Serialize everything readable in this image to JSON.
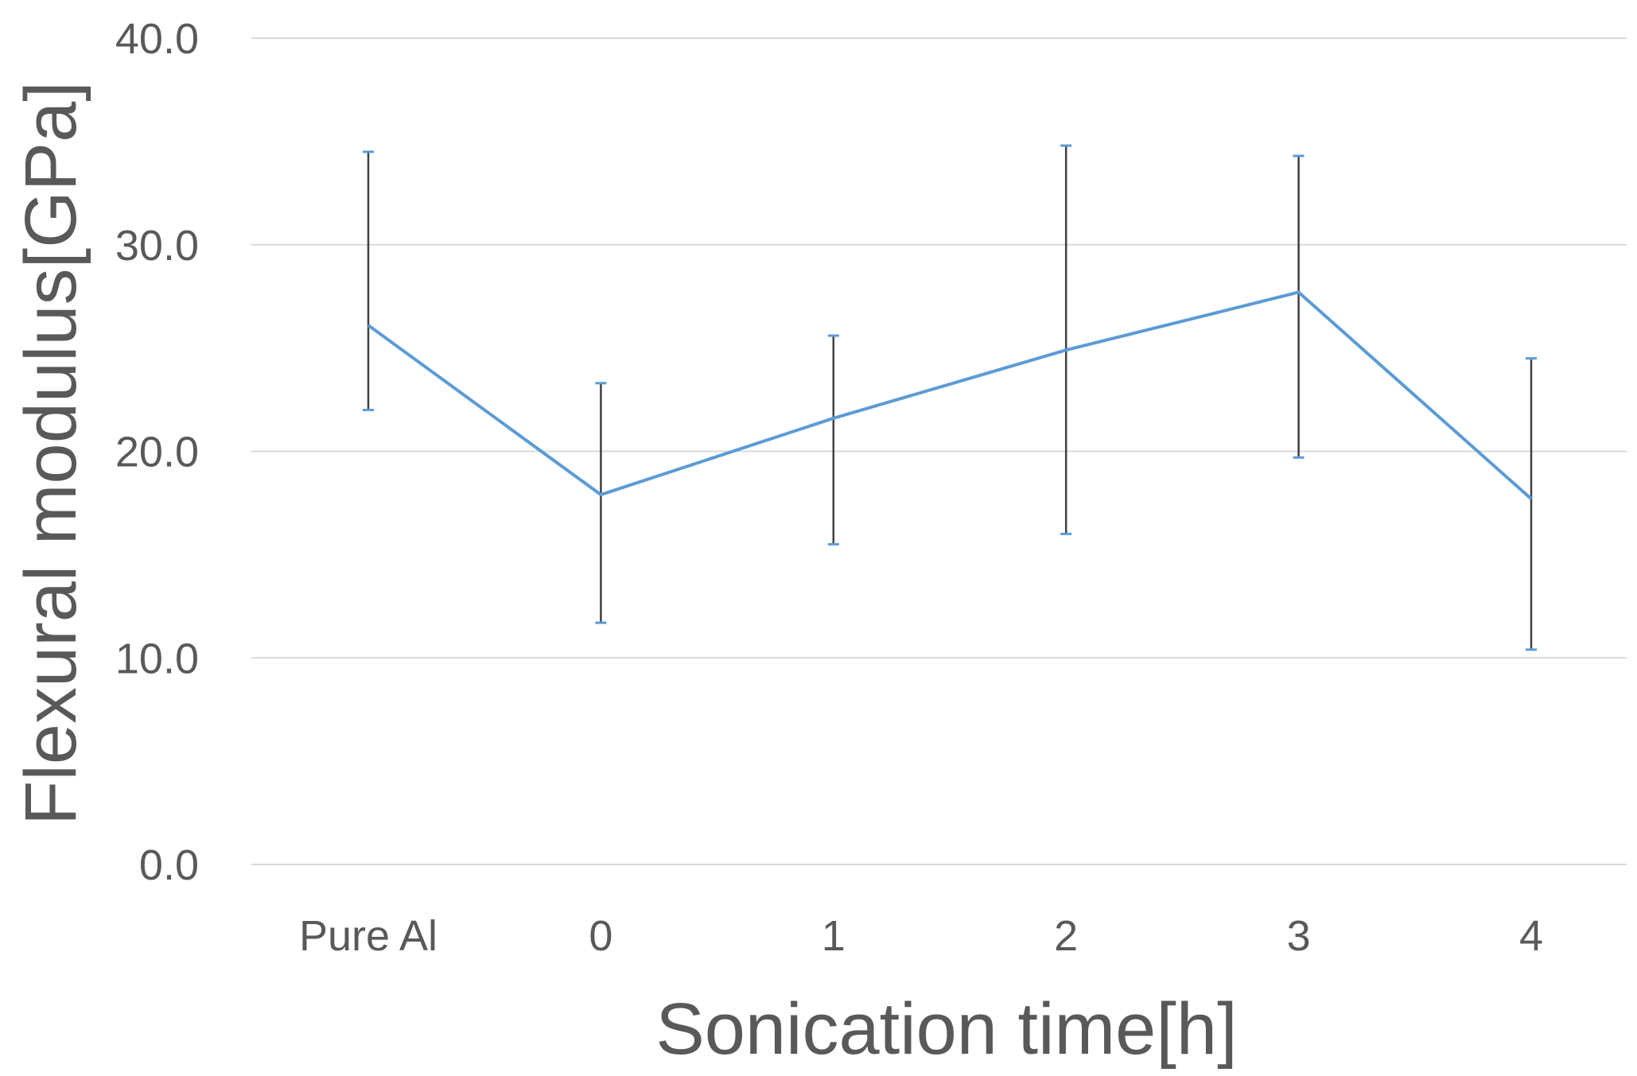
{
  "chart_data": {
    "type": "line",
    "title": "",
    "xlabel": "Sonication time[h]",
    "ylabel": "Flexural modulus[GPa]",
    "categories": [
      "Pure Al",
      "0",
      "1",
      "2",
      "3",
      "4"
    ],
    "ylim": [
      0,
      40
    ],
    "yticks": [
      0,
      10,
      20,
      30,
      40
    ],
    "ytick_labels": [
      "0.0",
      "10.0",
      "20.0",
      "30.0",
      "40.0"
    ],
    "grid": true,
    "legend": "none",
    "series": [
      {
        "values": [
          26.1,
          17.9,
          21.6,
          24.9,
          27.7,
          17.7
        ],
        "error_low": [
          22.0,
          11.7,
          15.5,
          16.0,
          19.7,
          10.4
        ],
        "error_high": [
          34.5,
          23.3,
          25.6,
          34.8,
          34.3,
          24.5
        ],
        "color": "#5b9bd5"
      }
    ],
    "colors": {
      "series": "#5b9bd5",
      "error_bar": "#404040",
      "grid": "#d9d9d9",
      "text": "#595959"
    }
  }
}
